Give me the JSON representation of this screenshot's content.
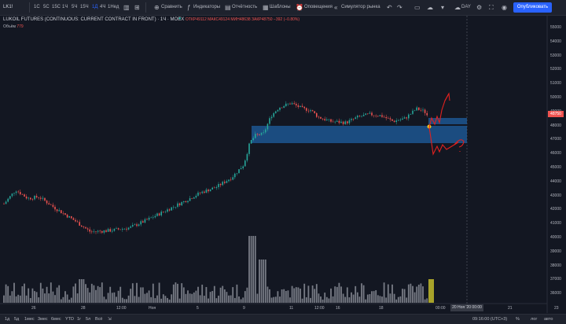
{
  "toolbar": {
    "symbol": "LK1!",
    "intervals": [
      "1С",
      "5С",
      "15С",
      "1Ч",
      "5Ч",
      "15Ч",
      "1Д",
      "4Ч",
      "1Нед"
    ],
    "active_interval": "1Д",
    "compare": "Сравнить",
    "indicators": "Индикаторы",
    "reports": "Отчётность",
    "templates": "Шаблоны",
    "alerts": "Оповещения",
    "simulator": "Симулятор рынка",
    "day_label": "DAY",
    "publish": "Опубликовать"
  },
  "legend": {
    "title": "LUKOIL FUTURES (CONTINUOUS: CURRENT CONTRACT IN FRONT) · 1Ч · MOEX",
    "ohlc": "ОТКР49112  МАКС49124  МИН48638  ЗАКР48750  −392 (−0.80%)",
    "volume_label": "Объём",
    "volume_value": "779"
  },
  "price_axis": {
    "ticks": [
      "55000",
      "54000",
      "53000",
      "52000",
      "51000",
      "50000",
      "49000",
      "48000",
      "47000",
      "46000",
      "45000",
      "44000",
      "43000",
      "42000",
      "41000",
      "40000",
      "39000",
      "38000",
      "37000",
      "36000"
    ],
    "last_price": "48750"
  },
  "time_axis": {
    "ticks": [
      "26",
      "28",
      "12:00",
      "Ноя",
      "5",
      "9",
      "11",
      "12:00",
      "16",
      "18",
      "00:00",
      "21",
      "23"
    ],
    "crosshair_label": "20 Ноя '20  00:00"
  },
  "bottom": {
    "ranges": [
      "1д",
      "5д",
      "1мес",
      "3мес",
      "6мес",
      "YTD",
      "1г",
      "5л",
      "Всё"
    ],
    "time": "09:16:00 (UTC+3)",
    "options": [
      "%",
      "лог",
      "авто"
    ]
  },
  "colors": {
    "background": "#131722",
    "up": "#26a69a",
    "down": "#ef5350",
    "zone": "#1e4f80",
    "annotation": "#e0211f",
    "accent": "#2962ff"
  }
}
